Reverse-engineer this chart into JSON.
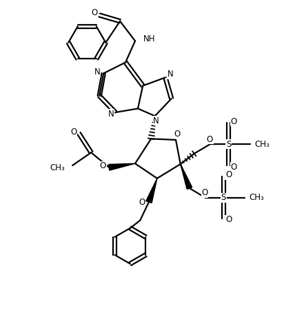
{
  "background_color": "#ffffff",
  "line_color": "#000000",
  "line_width": 1.6,
  "font_size": 8.5,
  "figsize": [
    4.12,
    4.7
  ],
  "dpi": 100,
  "xlim": [
    0,
    10.3
  ],
  "ylim": [
    0,
    11.75
  ]
}
